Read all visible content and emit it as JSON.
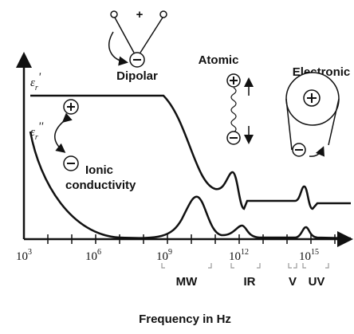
{
  "symbols": {
    "eps_real": {
      "base": "ε",
      "sub": "r",
      "prime": "'"
    },
    "eps_imag": {
      "base": "ε",
      "sub": "r",
      "prime": "''"
    }
  },
  "mechanisms": {
    "dipolar": "Dipolar",
    "atomic": "Atomic",
    "electronic": "Electronic",
    "ionic": "Ionic",
    "conductivity": "conductivity",
    "plus": "+"
  },
  "x_axis": {
    "tick_labels": [
      {
        "base": "10",
        "exp": "3"
      },
      {
        "base": "10",
        "exp": "6"
      },
      {
        "base": "10",
        "exp": "9"
      },
      {
        "base": "10",
        "exp": "12"
      },
      {
        "base": "10",
        "exp": "15"
      }
    ],
    "bands": [
      "MW",
      "IR",
      "V",
      "UV"
    ],
    "title": "Frequency in Hz"
  }
}
